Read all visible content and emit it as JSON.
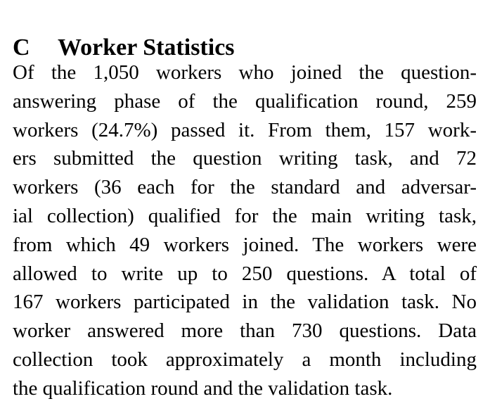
{
  "section": {
    "number": "C",
    "title": "Worker Statistics"
  },
  "paragraph_lines": [
    "Of the 1,050 workers who joined the question-",
    "answering phase of the qualification round, 259",
    "workers (24.7%) passed it. From them, 157 work-",
    "ers submitted the question writing task, and 72",
    "workers (36 each for the standard and adversar-",
    "ial collection) qualified for the main writing task,",
    "from which 49 workers joined. The workers were",
    "allowed to write up to 250 questions.  A total of",
    "167 workers participated in the validation task. No",
    "worker answered more than 730 questions.  Data",
    "collection took approximately a month including",
    "the qualification round and the validation task."
  ]
}
